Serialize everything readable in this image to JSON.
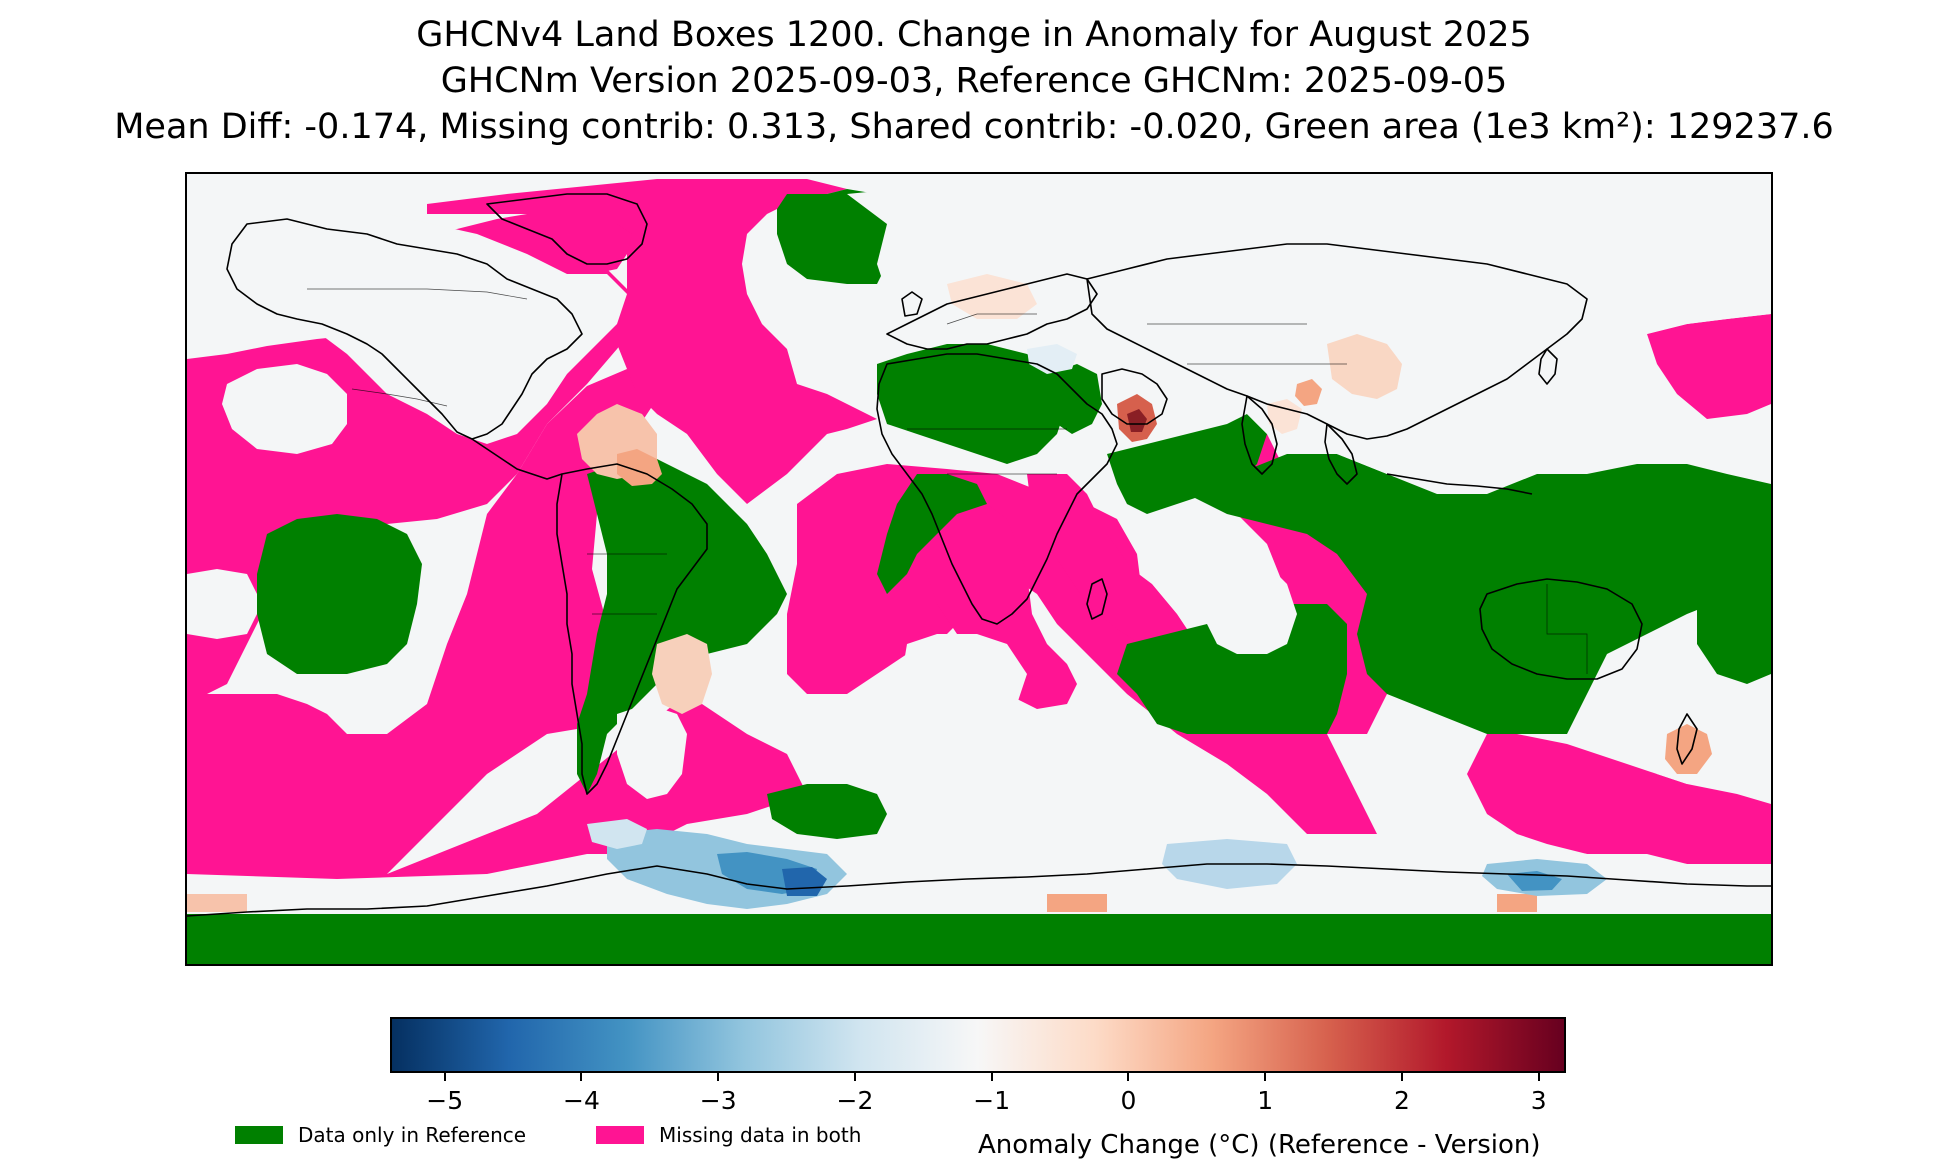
{
  "title": {
    "line1": "GHCNv4 Land Boxes 1200. Change in Anomaly for August 2025",
    "line2": "GHCNm Version 2025-09-03, Reference GHCNm: 2025-09-05",
    "line3": "Mean Diff: -0.174, Missing contrib: 0.313, Shared contrib: -0.020, Green area (1e3 km²): 129237.6"
  },
  "map": {
    "type": "global anomaly change map",
    "background_color": "#f4f6f7",
    "colors": {
      "data_only_in_reference": "#008000",
      "missing_in_both": "#ff1493",
      "coastline": "#000000"
    }
  },
  "colorbar": {
    "label": "Anomaly Change (°C) (Reference - Version)",
    "range": [
      -5.4,
      3.2
    ],
    "ticks": [
      {
        "value": -5,
        "label": "−5"
      },
      {
        "value": -4,
        "label": "−4"
      },
      {
        "value": -3,
        "label": "−3"
      },
      {
        "value": -2,
        "label": "−2"
      },
      {
        "value": -1,
        "label": "−1"
      },
      {
        "value": 0,
        "label": "0"
      },
      {
        "value": 1,
        "label": "1"
      },
      {
        "value": 2,
        "label": "2"
      },
      {
        "value": 3,
        "label": "3"
      }
    ],
    "colormap": "RdBu_r",
    "colormap_stops": [
      "#053061",
      "#2166ac",
      "#4393c3",
      "#92c5de",
      "#d1e5f0",
      "#f7f7f7",
      "#fddbc7",
      "#f4a582",
      "#d6604d",
      "#b2182b",
      "#67001f"
    ]
  },
  "legend": {
    "items": [
      {
        "label": "Data only in Reference",
        "color": "#008000"
      },
      {
        "label": "Missing data in both",
        "color": "#ff1493"
      }
    ]
  }
}
